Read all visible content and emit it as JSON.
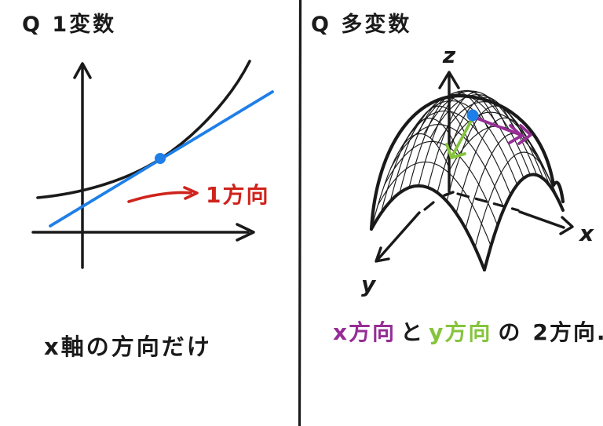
{
  "colors": {
    "ink": "#1a1a1a",
    "red": "#cf231c",
    "blue": "#1e7fe8",
    "purple": "#962d96",
    "green": "#85c43c"
  },
  "left_panel": {
    "title": "Q 1変数",
    "direction_label": "1方向",
    "caption": "x軸の方向だけ"
  },
  "right_panel": {
    "title": "Q 多変数",
    "z_label": "z",
    "x_label": "x",
    "y_label": "y",
    "caption": {
      "x_part": "x方向",
      "and_part": "と",
      "y_part": "y方向",
      "of_part": "の",
      "two_part": "2方向."
    }
  }
}
